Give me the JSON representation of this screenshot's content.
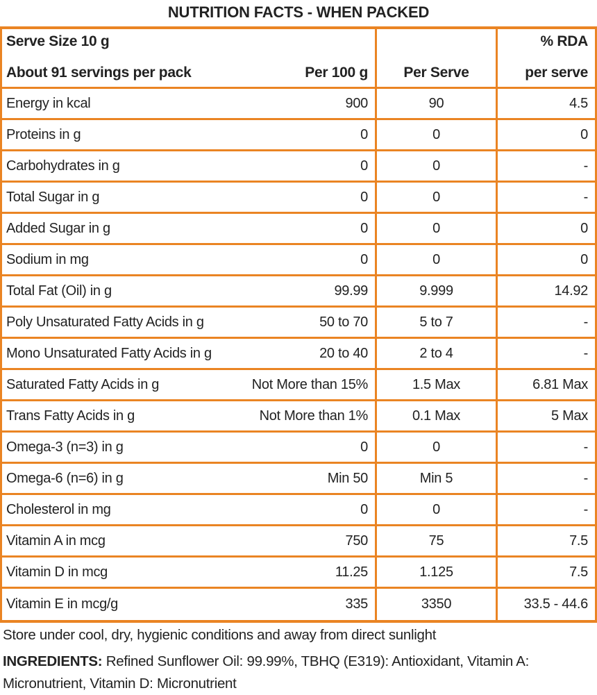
{
  "title": "NUTRITION FACTS - WHEN PACKED",
  "accent_color": "#EA8423",
  "table": {
    "header": {
      "serve_size": "Serve Size 10 g",
      "servings": "About 91 servings per pack",
      "per_100g": "Per 100 g",
      "per_serve": "Per Serve",
      "rda_line1": "% RDA",
      "rda_line2": "per serve"
    },
    "rows": [
      {
        "label": "Energy in kcal",
        "per_100g": "900",
        "per_serve": "90",
        "rda": "4.5"
      },
      {
        "label": "Proteins in g",
        "per_100g": "0",
        "per_serve": "0",
        "rda": "0"
      },
      {
        "label": "Carbohydrates in g",
        "per_100g": "0",
        "per_serve": "0",
        "rda": "-"
      },
      {
        "label": "Total Sugar in g",
        "per_100g": "0",
        "per_serve": "0",
        "rda": "-"
      },
      {
        "label": "Added Sugar in g",
        "per_100g": "0",
        "per_serve": "0",
        "rda": "0"
      },
      {
        "label": "Sodium in mg",
        "per_100g": "0",
        "per_serve": "0",
        "rda": "0"
      },
      {
        "label": "Total Fat (Oil) in g",
        "per_100g": "99.99",
        "per_serve": "9.999",
        "rda": "14.92"
      },
      {
        "label": "Poly Unsaturated Fatty Acids in g",
        "per_100g": "50 to 70",
        "per_serve": "5 to 7",
        "rda": "-"
      },
      {
        "label": "Mono Unsaturated Fatty Acids in g",
        "per_100g": "20 to 40",
        "per_serve": "2 to 4",
        "rda": "-"
      },
      {
        "label": "Saturated Fatty Acids in g",
        "per_100g": "Not More than 15%",
        "per_serve": "1.5 Max",
        "rda": "6.81 Max"
      },
      {
        "label": "Trans Fatty Acids in g",
        "per_100g": "Not More than 1%",
        "per_serve": "0.1 Max",
        "rda": "5 Max"
      },
      {
        "label": "Omega-3 (n=3) in g",
        "per_100g": "0",
        "per_serve": "0",
        "rda": "-"
      },
      {
        "label": "Omega-6 (n=6) in g",
        "per_100g": "Min 50",
        "per_serve": "Min 5",
        "rda": "-"
      },
      {
        "label": "Cholesterol in mg",
        "per_100g": "0",
        "per_serve": "0",
        "rda": "-"
      },
      {
        "label": "Vitamin A in mcg",
        "per_100g": "750",
        "per_serve": "75",
        "rda": "7.5"
      },
      {
        "label": "Vitamin D in mcg",
        "per_100g": "11.25",
        "per_serve": "1.125",
        "rda": "7.5"
      },
      {
        "label": "Vitamin E in mcg/g",
        "per_100g": "335",
        "per_serve": "3350",
        "rda": "33.5 - 44.6"
      }
    ]
  },
  "footer": {
    "storage": "Store under cool, dry, hygienic conditions and away from direct sunlight",
    "ingredients_label": "INGREDIENTS:",
    "ingredients_text": " Refined Sunflower Oil: 99.99%, TBHQ (E319): Antioxidant, Vitamin A: Micronutrient, Vitamin D: Micronutrient"
  }
}
